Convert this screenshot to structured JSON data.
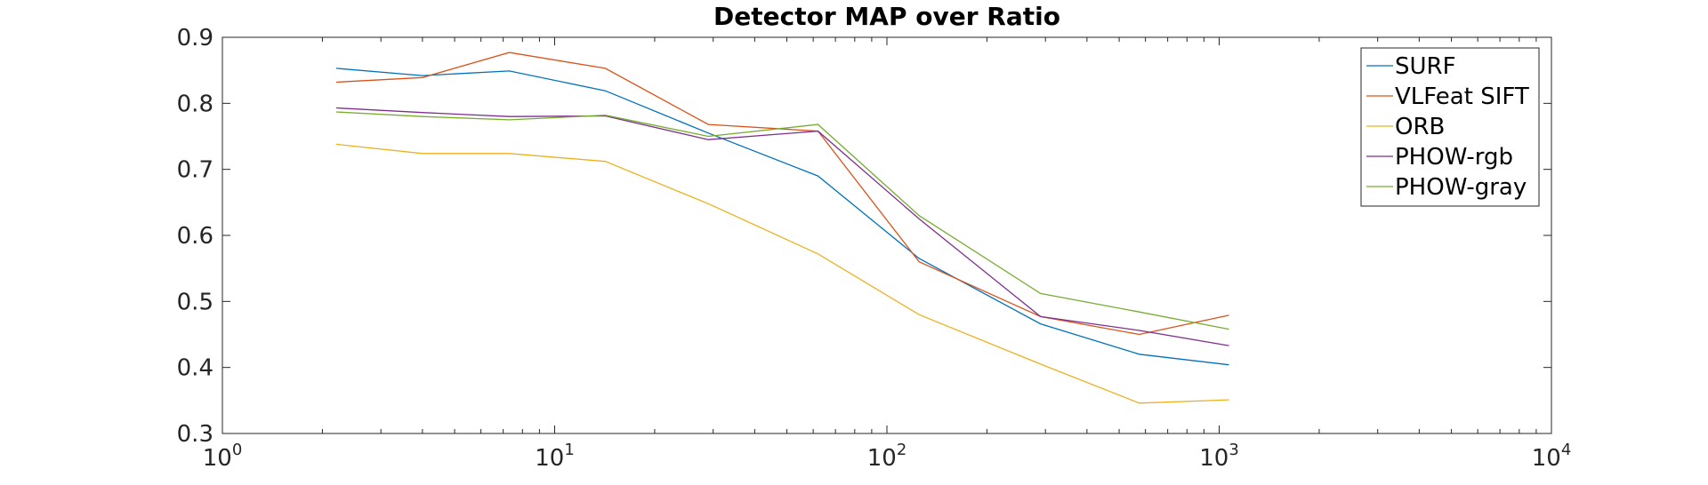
{
  "chart_data": {
    "type": "line",
    "title": "Detector MAP over Ratio",
    "xlabel": "",
    "ylabel": "",
    "x_scale": "log",
    "xlim": [
      1,
      10000
    ],
    "ylim": [
      0.3,
      0.9
    ],
    "x_ticks": [
      {
        "value": 1,
        "base": "10",
        "exp": "0"
      },
      {
        "value": 10,
        "base": "10",
        "exp": "1"
      },
      {
        "value": 100,
        "base": "10",
        "exp": "2"
      },
      {
        "value": 1000,
        "base": "10",
        "exp": "3"
      },
      {
        "value": 10000,
        "base": "10",
        "exp": "4"
      }
    ],
    "y_ticks": [
      "0.3",
      "0.4",
      "0.5",
      "0.6",
      "0.7",
      "0.8",
      "0.9"
    ],
    "grid": false,
    "legend_position": "top-right",
    "x": [
      2.2,
      4,
      7.3,
      14.2,
      29,
      62,
      125,
      290,
      575,
      1070
    ],
    "series": [
      {
        "name": "SURF",
        "color": "#0072BD",
        "values": [
          0.853,
          0.842,
          0.849,
          0.819,
          0.755,
          0.69,
          0.565,
          0.466,
          0.42,
          0.404
        ]
      },
      {
        "name": "VLFeat SIFT",
        "color": "#D95319",
        "values": [
          0.832,
          0.839,
          0.877,
          0.853,
          0.768,
          0.758,
          0.56,
          0.477,
          0.45,
          0.479
        ]
      },
      {
        "name": "ORB",
        "color": "#EDB120",
        "values": [
          0.738,
          0.724,
          0.724,
          0.712,
          0.648,
          0.572,
          0.48,
          0.405,
          0.346,
          0.351
        ]
      },
      {
        "name": "PHOW-rgb",
        "color": "#7E2F8E",
        "values": [
          0.793,
          0.786,
          0.78,
          0.781,
          0.745,
          0.758,
          0.625,
          0.477,
          0.456,
          0.433
        ]
      },
      {
        "name": "PHOW-gray",
        "color": "#77AC30",
        "values": [
          0.787,
          0.78,
          0.775,
          0.782,
          0.75,
          0.768,
          0.63,
          0.512,
          0.484,
          0.458
        ]
      }
    ]
  }
}
